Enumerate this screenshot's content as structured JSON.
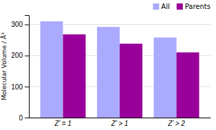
{
  "chart_data": {
    "type": "bar",
    "categories": [
      "Z’ = 1",
      "Z’ > 1",
      "Z’ > 2"
    ],
    "series": [
      {
        "name": "All",
        "color": "#aaaaff",
        "values": [
          310,
          292,
          258
        ]
      },
      {
        "name": "Parents",
        "color": "#990099",
        "values": [
          268,
          238,
          210
        ]
      }
    ],
    "ylabel": "Molecular Volume / Å³",
    "ylim": [
      0,
      330
    ],
    "yticks": [
      0,
      100,
      200,
      300
    ],
    "grid": true,
    "legend": "upper right"
  }
}
